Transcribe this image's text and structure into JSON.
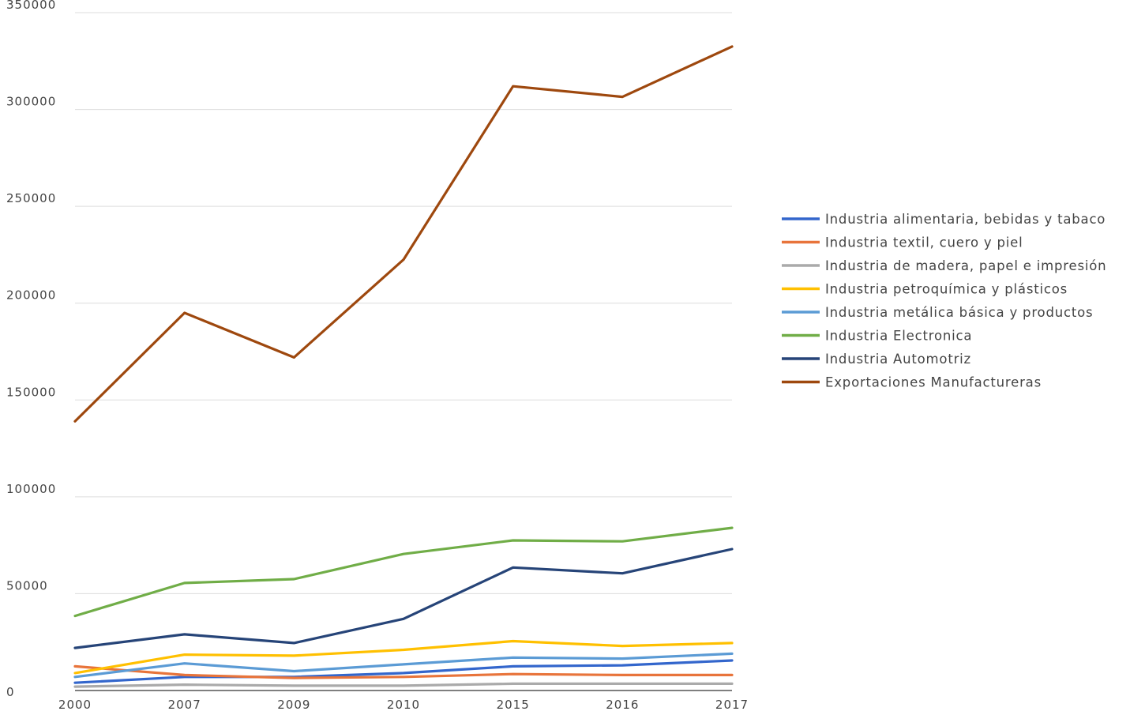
{
  "chart_data": {
    "type": "line",
    "title": "",
    "xlabel": "",
    "ylabel": "",
    "categories": [
      "2000",
      "2007",
      "2009",
      "2010",
      "2015",
      "2016",
      "2017"
    ],
    "ylim": [
      0,
      350000
    ],
    "yticks": [
      "0",
      "50000",
      "100000",
      "150000",
      "200000",
      "250000",
      "300000",
      "350000"
    ],
    "grid": true,
    "legend_position": "right",
    "series": [
      {
        "name": "Industria alimentaria, bebidas y tabaco",
        "color": "#3366cc",
        "values": [
          4000,
          7000,
          7000,
          9000,
          12500,
          13000,
          15500
        ]
      },
      {
        "name": "Industria textil, cuero y piel",
        "color": "#e8743b",
        "values": [
          12500,
          8000,
          6500,
          7000,
          8500,
          8000,
          8000
        ]
      },
      {
        "name": "Industria de madera, papel e impresión",
        "color": "#aaaaaa",
        "values": [
          2000,
          3000,
          2500,
          2500,
          3500,
          3500,
          3500
        ]
      },
      {
        "name": "Industria petroquímica y plásticos",
        "color": "#ffc000",
        "values": [
          9000,
          18500,
          18000,
          21000,
          25500,
          23000,
          24500
        ]
      },
      {
        "name": "Industria metálica básica y productos",
        "color": "#5b9bd5",
        "values": [
          7000,
          14000,
          10000,
          13500,
          17000,
          16500,
          19000
        ]
      },
      {
        "name": "Industria Electronica",
        "color": "#70ad47",
        "values": [
          38500,
          55500,
          57500,
          70500,
          77500,
          77000,
          84000
        ]
      },
      {
        "name": "Industria Automotriz",
        "color": "#264478",
        "values": [
          22000,
          29000,
          24500,
          37000,
          63500,
          60500,
          73000
        ]
      },
      {
        "name": "Exportaciones Manufactureras",
        "color": "#9e480e",
        "values": [
          139000,
          195000,
          172000,
          222500,
          312000,
          306500,
          332500
        ]
      }
    ]
  }
}
